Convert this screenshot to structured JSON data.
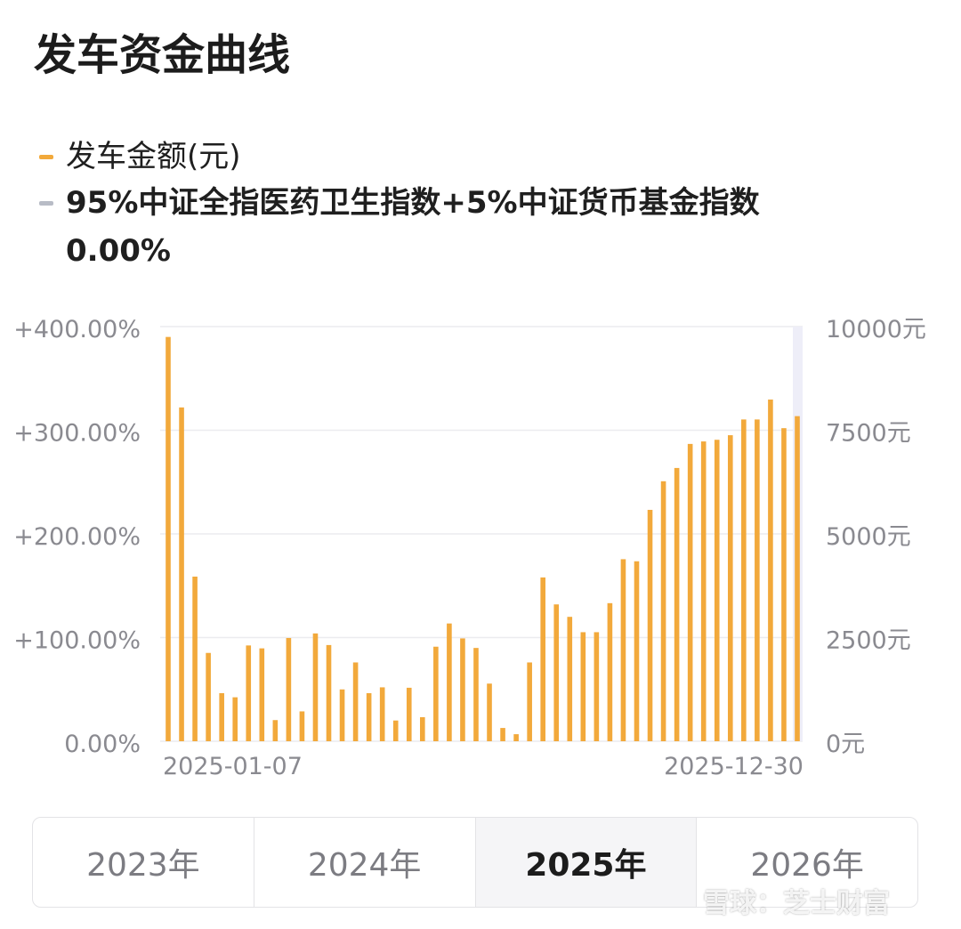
{
  "title": "发车资金曲线",
  "legend": {
    "amount_label": "发车金额(元)",
    "amount_color": "#f2a93b",
    "index_label": "95%中证全指医药卫生指数+5%中证货币基金指数",
    "index_color": "#b8bcc6",
    "index_value": "0.00%"
  },
  "chart_data": {
    "type": "bar",
    "series": [
      {
        "name": "发车金额(元)",
        "values": [
          9750,
          8050,
          3970,
          2130,
          1160,
          1060,
          2310,
          2240,
          510,
          2490,
          720,
          2600,
          2320,
          1250,
          1900,
          1160,
          1300,
          500,
          1290,
          580,
          2280,
          2840,
          2480,
          2250,
          1390,
          320,
          170,
          1900,
          3950,
          3300,
          3000,
          2630,
          2630,
          3330,
          4390,
          4340,
          5580,
          6270,
          6590,
          7170,
          7230,
          7270,
          7380,
          7760,
          7760,
          8240,
          7550,
          7840
        ]
      }
    ],
    "x_labels": [
      "2025-01-07",
      "2025-12-30"
    ],
    "left_axis": {
      "ticks": [
        "+400.00%",
        "+300.00%",
        "+200.00%",
        "+100.00%",
        "0.00%"
      ],
      "range": [
        0,
        400
      ]
    },
    "right_axis": {
      "ticks": [
        "10000元",
        "7500元",
        "5000元",
        "2500元",
        "0元"
      ],
      "range": [
        0,
        10000
      ]
    },
    "grid": true
  },
  "tabs": [
    {
      "label": "2023年",
      "active": false
    },
    {
      "label": "2024年",
      "active": false
    },
    {
      "label": "2025年",
      "active": true
    },
    {
      "label": "2026年",
      "active": false
    }
  ],
  "watermark": "雪球：芝士财富"
}
